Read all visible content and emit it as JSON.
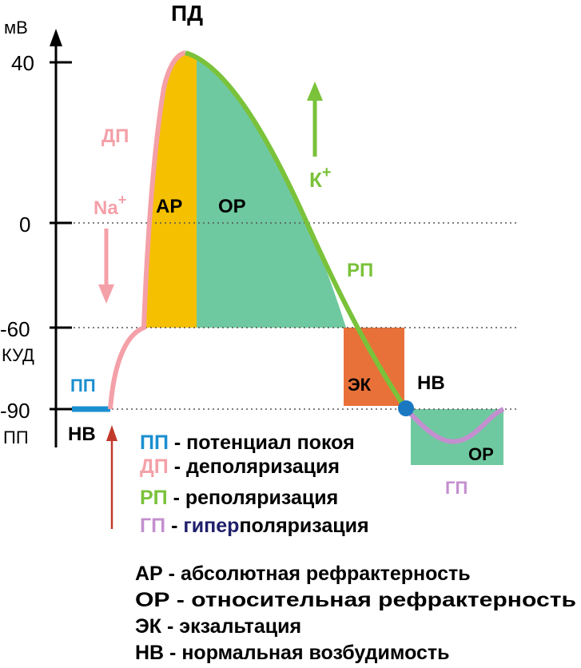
{
  "title": "ПД",
  "axis": {
    "unit": "мВ",
    "ticks": [
      "40",
      "0",
      "-60",
      "-90"
    ],
    "kud": "КУД",
    "pp": "ПП"
  },
  "colors": {
    "pp": "#1a8fd0",
    "dp": "#f4a0a8",
    "rp": "#7ac23a",
    "gp": "#c48fcf",
    "ap_fill": "#f5c000",
    "or_fill": "#6fc9a0",
    "ek_fill": "#e8713a",
    "point": "#1a78c2",
    "stim": "#c0392b",
    "dark_blue": "#1f1f6b"
  },
  "labels": {
    "dp": "ДП",
    "na": "Na",
    "na_sup": "+",
    "k": "К",
    "k_sup": "+",
    "ap": "АР",
    "or_main": "ОР",
    "rp": "РП",
    "ek": "ЭК",
    "nv_right": "НВ",
    "pp_small": "ПП",
    "nv_left": "НВ",
    "or_small": "ОР",
    "gp": "ГП"
  },
  "legend1": [
    {
      "abbr": "ПП",
      "text": " - потенциал покоя"
    },
    {
      "abbr": "ДП",
      "text": " - деполяризация"
    },
    {
      "abbr": "РП",
      "text": " - реполяризация"
    },
    {
      "abbr": "ГП",
      "text": " - ",
      "emph": "гипер",
      "rest": "поляризация"
    }
  ],
  "legend2": [
    "АР - абсолютная рефрактерность",
    "ОР - относительная рефрактерность",
    "ЭК - экзальтация",
    "НВ - нормальная возбудимость"
  ]
}
